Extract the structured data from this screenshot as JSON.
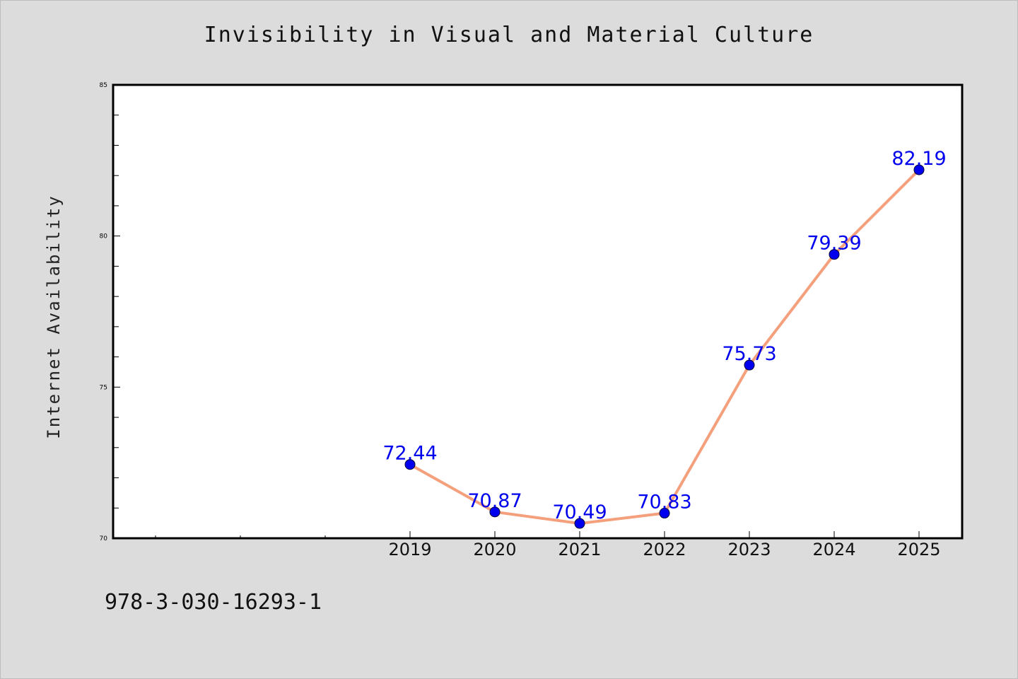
{
  "chart_data": {
    "type": "line",
    "title": "Invisibility in Visual and Material Culture",
    "xlabel": "",
    "ylabel": "Internet Availability",
    "x": [
      "2019",
      "2020",
      "2021",
      "2022",
      "2023",
      "2024",
      "2025"
    ],
    "series": [
      {
        "values": [
          72.44,
          70.87,
          70.49,
          70.83,
          75.73,
          79.39,
          82.19
        ]
      }
    ],
    "data_labels": [
      "72.44",
      "70.87",
      "70.49",
      "70.83",
      "75.73",
      "79.39",
      "82.19"
    ],
    "ylim": [
      70,
      85
    ],
    "y_ticks": [
      "70",
      "75",
      "80",
      "85"
    ],
    "grid": false,
    "legend": "none",
    "line_color": "#f4a07c",
    "marker_color": "#0000ee",
    "label_color": "#0000ee"
  },
  "footer": {
    "code": "978-3-030-16293-1"
  }
}
